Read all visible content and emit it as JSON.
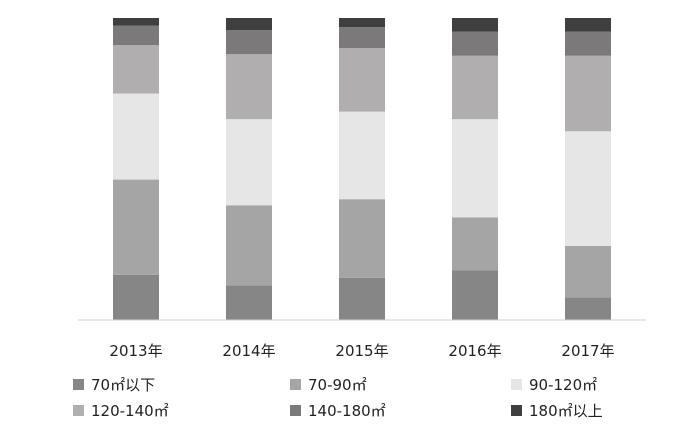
{
  "chart_data": {
    "type": "bar",
    "stacked": true,
    "normalized": true,
    "categories": [
      "2013年",
      "2014年",
      "2015年",
      "2016年",
      "2017年"
    ],
    "series": [
      {
        "name": "70㎡以下",
        "color": "#868686",
        "values": [
          15,
          11.5,
          14,
          16.5,
          7.5
        ]
      },
      {
        "name": "70-90㎡",
        "color": "#a5a5a5",
        "values": [
          31.5,
          26.5,
          26,
          17.5,
          17
        ]
      },
      {
        "name": "90-120㎡",
        "color": "#e6e6e6",
        "values": [
          28.5,
          28.5,
          29,
          32.5,
          38
        ]
      },
      {
        "name": "120-140㎡",
        "color": "#b0aeae",
        "values": [
          16,
          21.5,
          21,
          21,
          25
        ]
      },
      {
        "name": "140-180㎡",
        "color": "#7b7979",
        "values": [
          6.5,
          8,
          7,
          8,
          8
        ]
      },
      {
        "name": "180㎡以上",
        "color": "#3f3f3f",
        "values": [
          2.5,
          4,
          3,
          4.5,
          4.5
        ]
      }
    ],
    "ylim": [
      0,
      100
    ],
    "grid": false,
    "legend_position": "bottom"
  }
}
